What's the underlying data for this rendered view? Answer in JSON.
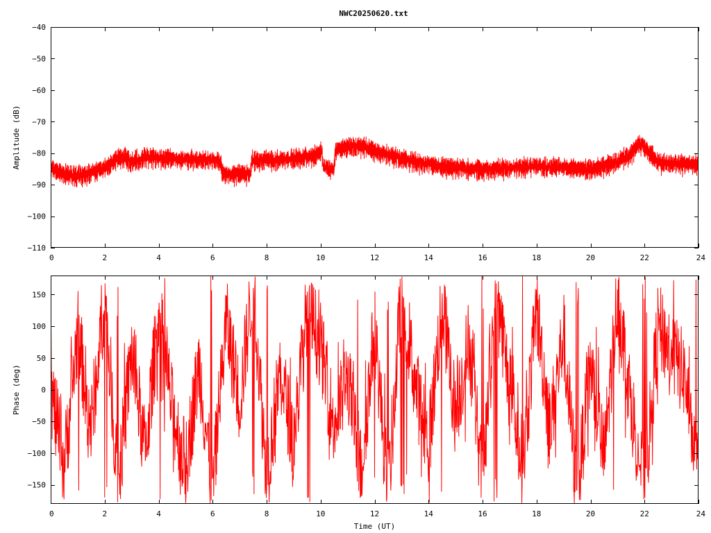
{
  "title": "NWC20250620.txt",
  "colors": {
    "series": "#ff0000",
    "axis": "#000000",
    "background": "#ffffff"
  },
  "chart_data": [
    {
      "type": "line",
      "title": "NWC20250620.txt",
      "xlabel": "",
      "ylabel": "Amplitude (dB)",
      "xlim": [
        0,
        24
      ],
      "ylim": [
        -110,
        -40
      ],
      "xticks": [
        "0",
        "2",
        "4",
        "6",
        "8",
        "10",
        "12",
        "14",
        "16",
        "18",
        "20",
        "22",
        "24"
      ],
      "yticks": [
        "-40",
        "-50",
        "-60",
        "-70",
        "-80",
        "-90",
        "-100",
        "-110"
      ],
      "grid": false,
      "series": [
        {
          "x": [
            0,
            0.5,
            1.0,
            1.5,
            2.0,
            2.5,
            2.8,
            3.0,
            3.5,
            4.0,
            5.0,
            6.0,
            6.3,
            6.35,
            7.0,
            7.4,
            7.45,
            8.0,
            9.0,
            9.8,
            10.05,
            10.1,
            10.5,
            10.55,
            11.0,
            11.5,
            12.0,
            13.0,
            14.0,
            15.0,
            16.0,
            17.0,
            18.0,
            19.0,
            20.0,
            20.5,
            21.0,
            21.5,
            21.8,
            22.0,
            22.3,
            22.6,
            23.0,
            23.5,
            24.0
          ],
          "y": [
            -84,
            -86,
            -86.5,
            -85.5,
            -84,
            -81,
            -80.5,
            -82,
            -80.5,
            -81,
            -81.5,
            -81.5,
            -82,
            -86,
            -86,
            -86,
            -81.5,
            -81.5,
            -81,
            -80,
            -79,
            -84,
            -84.5,
            -78.5,
            -77,
            -77,
            -78.5,
            -81,
            -83,
            -84,
            -84.5,
            -84,
            -83.5,
            -84,
            -84.5,
            -83.5,
            -82,
            -79.5,
            -76,
            -77.5,
            -80.5,
            -82.5,
            -82.5,
            -83,
            -82.5
          ]
        }
      ]
    },
    {
      "type": "line",
      "title": "",
      "xlabel": "Time (UT)",
      "ylabel": "Phase (deg)",
      "xlim": [
        0,
        24
      ],
      "ylim": [
        -180,
        180
      ],
      "xticks": [
        "0",
        "2",
        "4",
        "6",
        "8",
        "10",
        "12",
        "14",
        "16",
        "18",
        "20",
        "22",
        "24"
      ],
      "yticks": [
        "150",
        "100",
        "50",
        "0",
        "-50",
        "-100",
        "-150"
      ],
      "grid": false,
      "series": [
        {
          "x": [
            0,
            0.5,
            1.0,
            1.5,
            2.0,
            2.5,
            3.0,
            3.5,
            4.0,
            4.5,
            5.0,
            5.5,
            6.0,
            6.5,
            7.0,
            7.5,
            8.0,
            8.5,
            9.0,
            9.5,
            10.0,
            10.5,
            11.0,
            11.5,
            12.0,
            12.5,
            13.0,
            13.5,
            14.0,
            14.5,
            15.0,
            15.5,
            16.0,
            16.5,
            17.0,
            17.5,
            18.0,
            18.5,
            19.0,
            19.5,
            20.0,
            20.5,
            21.0,
            21.5,
            22.0,
            22.5,
            23.0,
            23.5,
            24.0
          ],
          "y": [
            0,
            -120,
            90,
            -60,
            150,
            -150,
            60,
            -100,
            120,
            -30,
            -120,
            40,
            -160,
            110,
            -20,
            170,
            -140,
            30,
            -80,
            130,
            70,
            -60,
            20,
            -130,
            100,
            -170,
            160,
            10,
            -90,
            140,
            -40,
            80,
            -150,
            170,
            0,
            -120,
            130,
            -60,
            90,
            -170,
            40,
            -110,
            150,
            -20,
            -160,
            100,
            60,
            20,
            -150
          ]
        }
      ]
    }
  ]
}
